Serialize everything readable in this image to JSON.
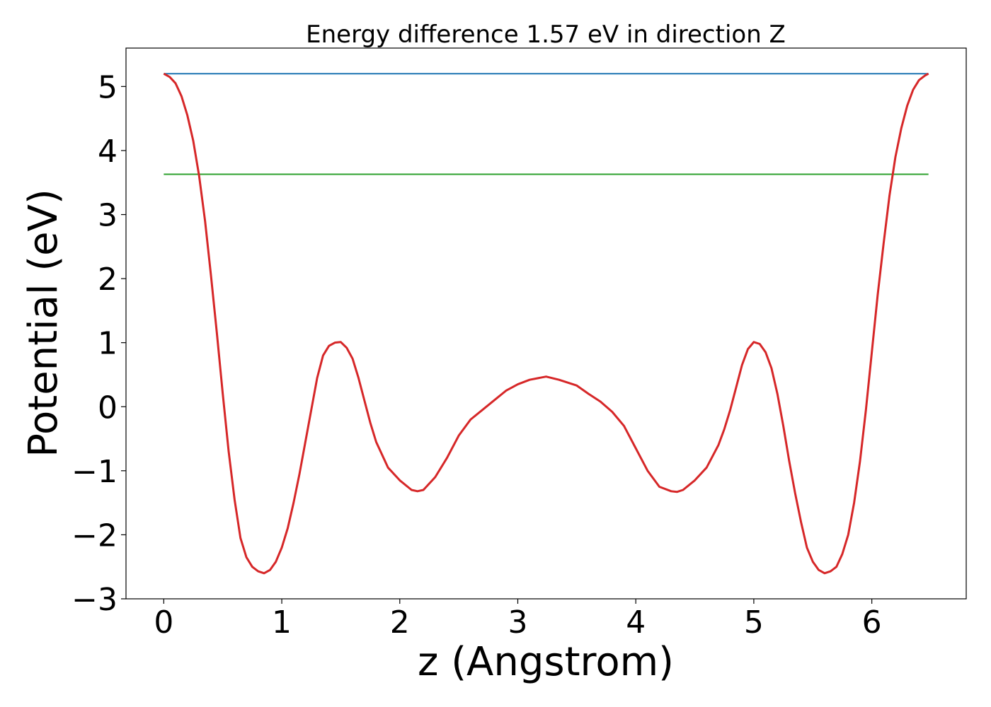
{
  "chart_data": {
    "type": "line",
    "title": "Energy difference 1.57 eV in direction Z",
    "xlabel": "z (Angstrom)",
    "ylabel": "Potential (eV)",
    "xlim": [
      -0.32,
      6.8
    ],
    "ylim": [
      -3.0,
      5.6
    ],
    "xticks": [
      0,
      1,
      2,
      3,
      4,
      5,
      6
    ],
    "yticks": [
      -3,
      -2,
      -1,
      0,
      1,
      2,
      3,
      4,
      5
    ],
    "xtick_labels": [
      "0",
      "1",
      "2",
      "3",
      "4",
      "5",
      "6"
    ],
    "ytick_labels": [
      "−3",
      "−2",
      "−1",
      "0",
      "1",
      "2",
      "3",
      "4",
      "5"
    ],
    "grid": false,
    "series": [
      {
        "color": "#1f77b4",
        "x": [
          0,
          6.48
        ],
        "y": [
          5.2,
          5.2
        ]
      },
      {
        "color": "#2ca02c",
        "x": [
          0,
          6.48
        ],
        "y": [
          3.63,
          3.63
        ]
      },
      {
        "color": "#d62728",
        "x": [
          0,
          0.05,
          0.1,
          0.15,
          0.2,
          0.25,
          0.3,
          0.35,
          0.4,
          0.45,
          0.5,
          0.55,
          0.6,
          0.65,
          0.7,
          0.75,
          0.8,
          0.85,
          0.9,
          0.95,
          1.0,
          1.05,
          1.1,
          1.15,
          1.2,
          1.25,
          1.3,
          1.35,
          1.4,
          1.45,
          1.5,
          1.55,
          1.6,
          1.65,
          1.7,
          1.75,
          1.8,
          1.9,
          2.0,
          2.1,
          2.15,
          2.2,
          2.3,
          2.4,
          2.5,
          2.6,
          2.7,
          2.8,
          2.9,
          3.0,
          3.1,
          3.24,
          3.35,
          3.5,
          3.6,
          3.7,
          3.8,
          3.9,
          4.0,
          4.1,
          4.2,
          4.3,
          4.35,
          4.4,
          4.5,
          4.6,
          4.7,
          4.75,
          4.8,
          4.85,
          4.9,
          4.95,
          5.0,
          5.05,
          5.1,
          5.15,
          5.2,
          5.25,
          5.3,
          5.35,
          5.4,
          5.45,
          5.5,
          5.55,
          5.6,
          5.65,
          5.7,
          5.75,
          5.8,
          5.85,
          5.9,
          5.95,
          6.0,
          6.05,
          6.1,
          6.15,
          6.2,
          6.25,
          6.3,
          6.35,
          6.4,
          6.45,
          6.48
        ],
        "y": [
          5.2,
          5.15,
          5.05,
          4.85,
          4.55,
          4.15,
          3.6,
          2.9,
          2.05,
          1.15,
          0.2,
          -0.7,
          -1.45,
          -2.05,
          -2.35,
          -2.5,
          -2.57,
          -2.6,
          -2.55,
          -2.42,
          -2.2,
          -1.9,
          -1.5,
          -1.05,
          -0.55,
          -0.05,
          0.45,
          0.8,
          0.95,
          1.0,
          1.01,
          0.92,
          0.75,
          0.45,
          0.1,
          -0.25,
          -0.55,
          -0.95,
          -1.15,
          -1.3,
          -1.32,
          -1.3,
          -1.1,
          -0.8,
          -0.45,
          -0.2,
          -0.05,
          0.1,
          0.25,
          0.35,
          0.42,
          0.47,
          0.42,
          0.33,
          0.2,
          0.08,
          -0.08,
          -0.3,
          -0.65,
          -1.0,
          -1.25,
          -1.32,
          -1.33,
          -1.3,
          -1.15,
          -0.95,
          -0.6,
          -0.35,
          -0.05,
          0.3,
          0.65,
          0.9,
          1.01,
          0.98,
          0.85,
          0.6,
          0.2,
          -0.3,
          -0.85,
          -1.35,
          -1.8,
          -2.2,
          -2.42,
          -2.55,
          -2.6,
          -2.57,
          -2.5,
          -2.3,
          -2.0,
          -1.5,
          -0.85,
          -0.05,
          0.85,
          1.75,
          2.55,
          3.3,
          3.9,
          4.35,
          4.7,
          4.95,
          5.1,
          5.17,
          5.2
        ]
      }
    ]
  }
}
